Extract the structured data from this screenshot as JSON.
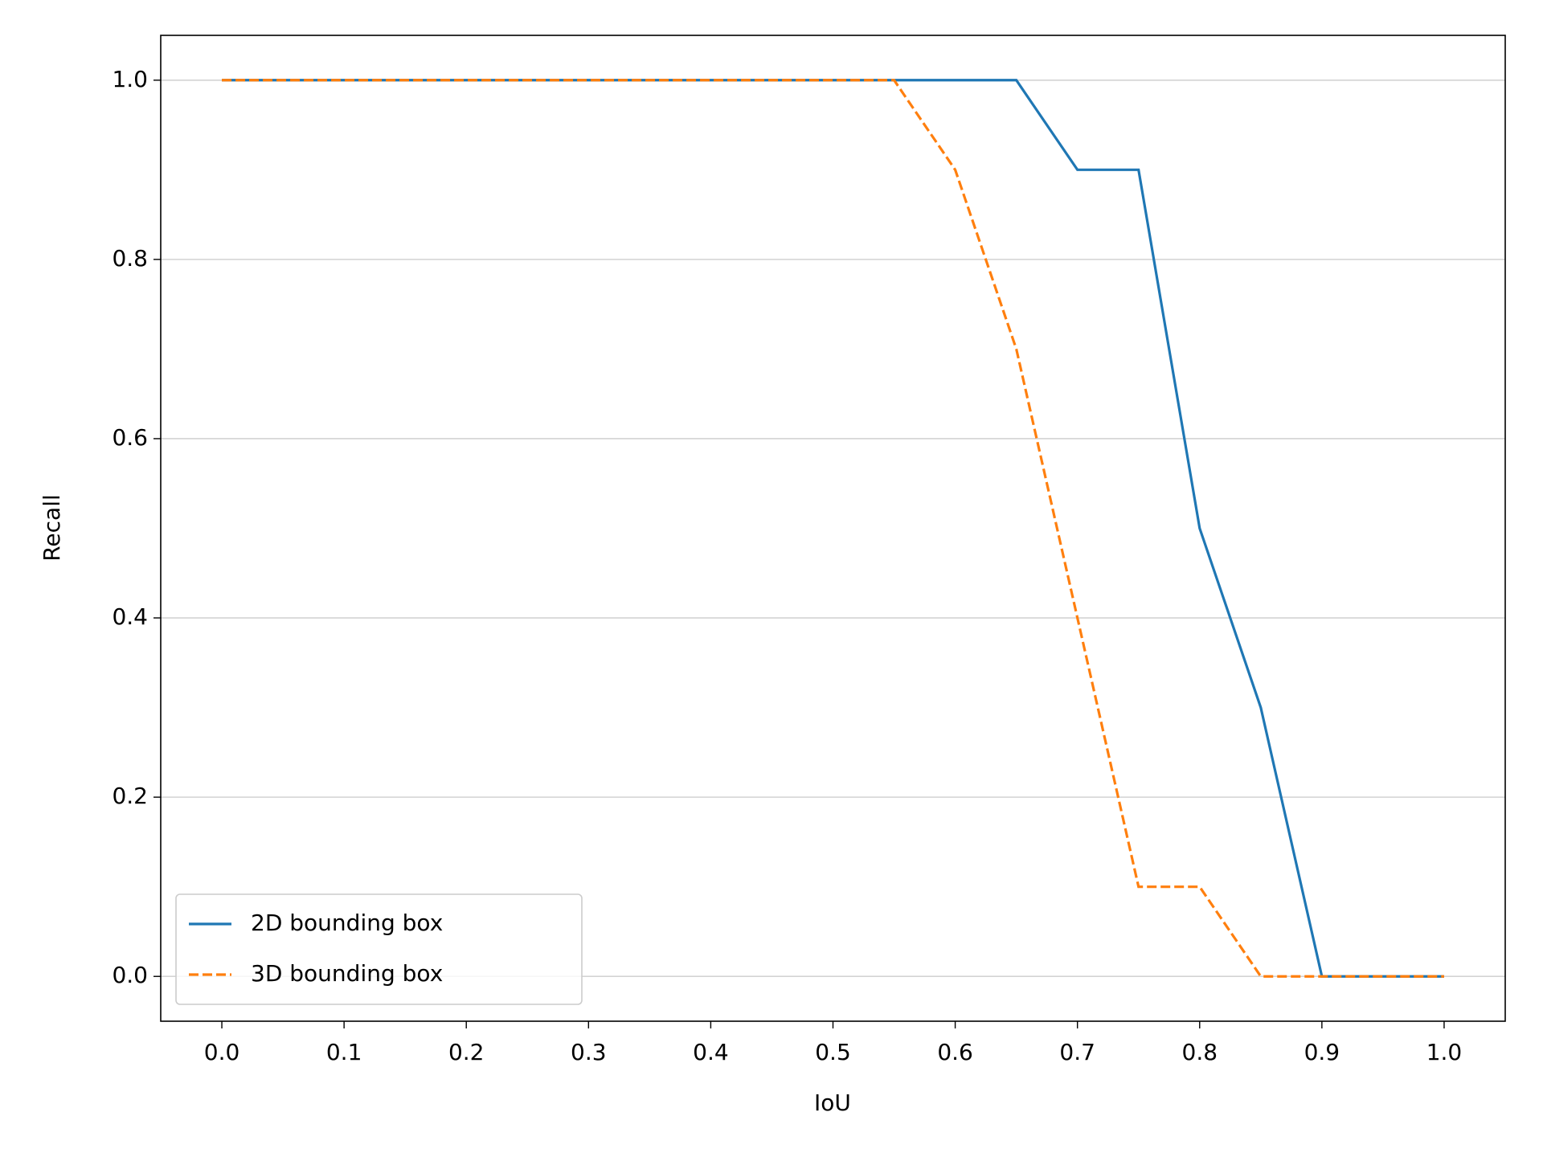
{
  "chart_data": {
    "type": "line",
    "x_label": "IoU",
    "y_label": "Recall",
    "x": [
      0,
      0.05,
      0.1,
      0.15,
      0.2,
      0.25,
      0.3,
      0.35,
      0.4,
      0.45,
      0.5,
      0.55,
      0.6,
      0.65,
      0.7,
      0.75,
      0.8,
      0.85,
      0.9,
      0.95,
      1
    ],
    "series": [
      {
        "name": "2D bounding box",
        "color": "#1f77b4",
        "dash": "solid",
        "values": [
          1,
          1,
          1,
          1,
          1,
          1,
          1,
          1,
          1,
          1,
          1,
          1,
          1,
          1,
          0.9,
          0.9,
          0.5,
          0.3,
          0,
          0,
          0
        ]
      },
      {
        "name": "3D bounding box",
        "color": "#ff7f0e",
        "dash": "dashed",
        "values": [
          1,
          1,
          1,
          1,
          1,
          1,
          1,
          1,
          1,
          1,
          1,
          1,
          0.9,
          0.7,
          0.4,
          0.1,
          0.1,
          0,
          0,
          0,
          0
        ]
      }
    ],
    "xlim": [
      -0.05,
      1.05
    ],
    "ylim": [
      -0.05,
      1.05
    ],
    "xticks": [
      {
        "value": 0,
        "label": "0.0"
      },
      0.1,
      0.2,
      0.3,
      0.4,
      0.5,
      0.6,
      0.7,
      0.8,
      0.9,
      {
        "value": 1,
        "label": "1.0"
      }
    ],
    "yticks": [
      {
        "value": 0,
        "label": "0.0"
      },
      0.2,
      0.4,
      0.6,
      0.8,
      {
        "value": 1,
        "label": "1.0"
      }
    ],
    "grid": "y",
    "legend": "lower left"
  }
}
